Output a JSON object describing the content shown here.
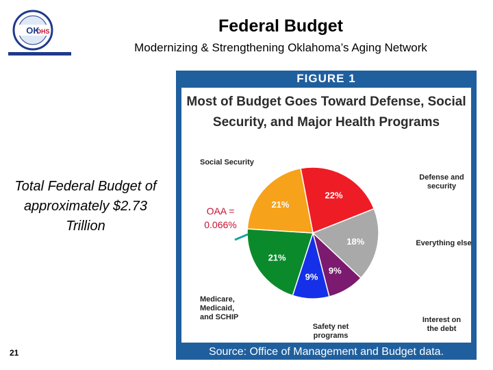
{
  "header": {
    "title": "Federal Budget",
    "subtitle": "Modernizing & Strengthening Oklahoma’s Aging Network",
    "logo_text": "OKDHS"
  },
  "sidebar": {
    "total_text": "Total Federal Budget of approximately $2.73 Trillion",
    "page_number": "21"
  },
  "figure": {
    "label": "FIGURE 1",
    "source": "Source: Office of Management and Budget data.",
    "annotation": "OAA = 0.066%",
    "frame_color": "#1f5f9e"
  },
  "chart_data": {
    "type": "pie",
    "title": "Most of Budget Goes Toward Defense, Social Security, and Major Health Programs",
    "slices": [
      {
        "label": "Defense and security",
        "value": 22,
        "display": "22%",
        "color": "#ee1c25"
      },
      {
        "label": "Everything else",
        "value": 18,
        "display": "18%",
        "color": "#a9a9a9"
      },
      {
        "label": "Interest on the debt",
        "value": 9,
        "display": "9%",
        "color": "#7b1a6e"
      },
      {
        "label": "Safety net programs",
        "value": 9,
        "display": "9%",
        "color": "#1530e8"
      },
      {
        "label": "Medicare, Medicaid, and SCHIP",
        "value": 21,
        "display": "21%",
        "color": "#0b8a2c"
      },
      {
        "label": "Social Security",
        "value": 21,
        "display": "21%",
        "color": "#f7a21b"
      }
    ]
  }
}
